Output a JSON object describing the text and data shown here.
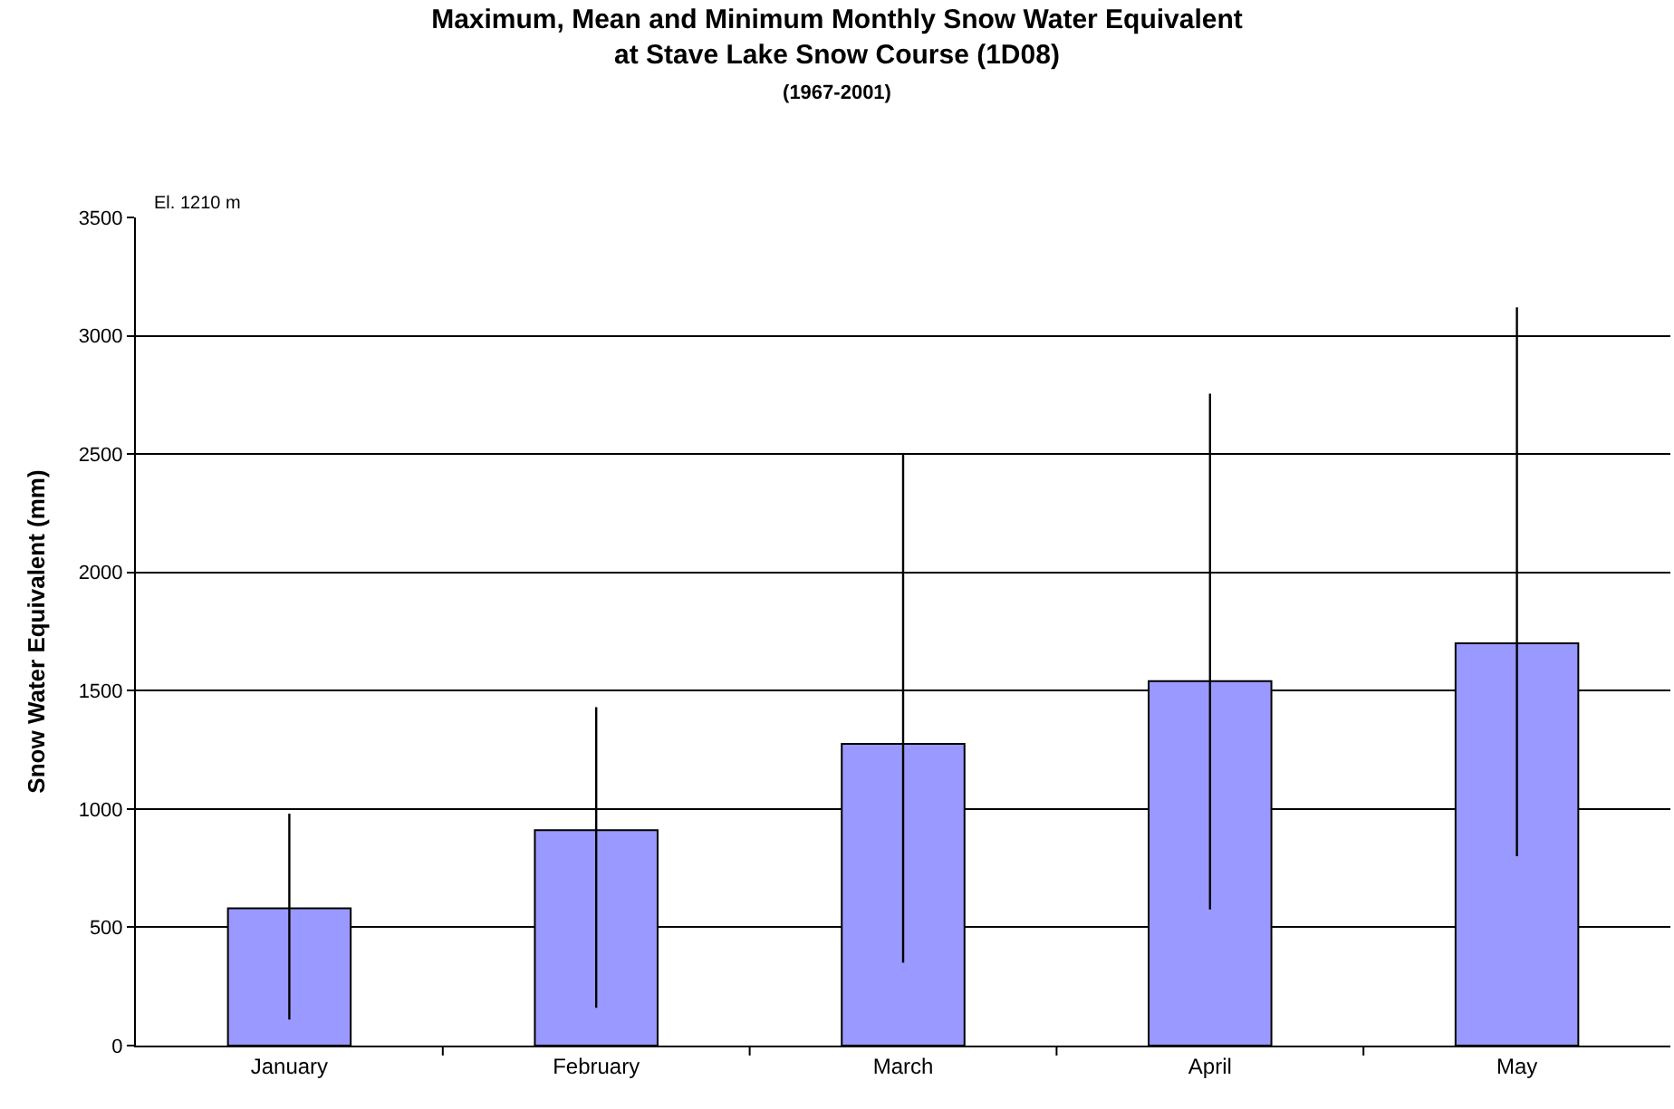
{
  "chart_data": {
    "type": "bar",
    "title": "Maximum, Mean and Minimum Monthly Snow Water Equivalent\nat Stave Lake Snow Course (1D08)",
    "subtitle": "(1967-2001)",
    "ylabel": "Snow Water Equivalent (mm)",
    "annotations": [
      "El. 1210 m"
    ],
    "categories": [
      "January",
      "February",
      "March",
      "April",
      "May"
    ],
    "values": [
      580,
      910,
      1275,
      1540,
      1700
    ],
    "errors": [
      [
        110,
        980
      ],
      [
        160,
        1430
      ],
      [
        350,
        2500
      ],
      [
        575,
        2755
      ],
      [
        800,
        3120
      ]
    ],
    "color": "#9999ff",
    "ylim": [
      0,
      3500
    ],
    "yticks": [
      0,
      500,
      1000,
      1500,
      2000,
      2500,
      3000,
      3500
    ],
    "grid": "y"
  }
}
